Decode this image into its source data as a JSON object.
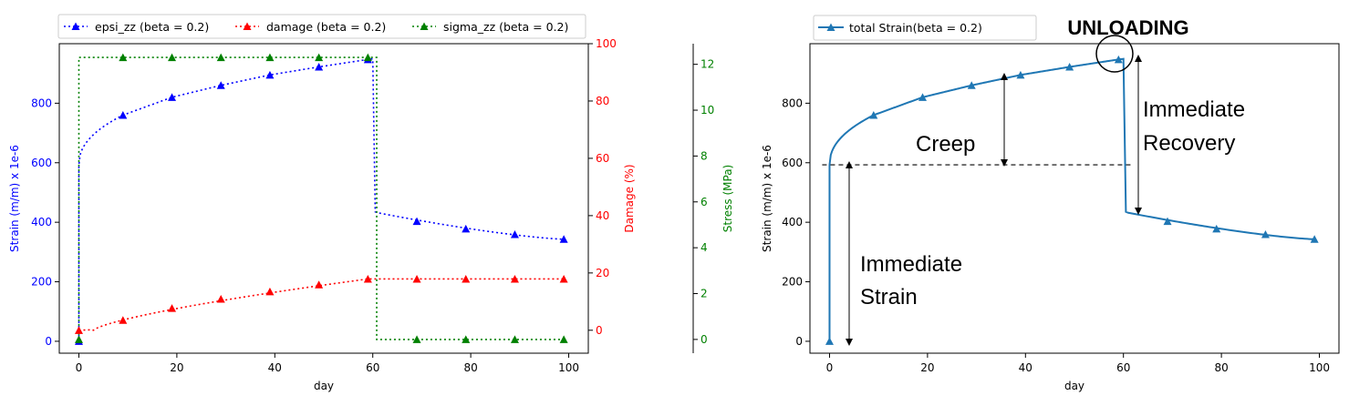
{
  "chart_data": [
    {
      "type": "line",
      "xlabel": "day",
      "x_ticks": [
        0,
        20,
        40,
        60,
        80,
        100
      ],
      "xlim": [
        -4,
        104
      ],
      "axes": {
        "strain": {
          "label": "Strain (m/m) x 1e-6",
          "color": "#0000ff",
          "ylim": [
            -40,
            1000
          ],
          "ticks": [
            0,
            200,
            400,
            600,
            800
          ]
        },
        "damage": {
          "label": "Damage (%)",
          "color": "#ff0000",
          "ylim": [
            -8,
            100
          ],
          "ticks": [
            0,
            20,
            40,
            60,
            80,
            100
          ]
        },
        "stress": {
          "label": "Stress (MPa)",
          "color": "#008000",
          "ylim": [
            -0.6,
            12.9
          ],
          "ticks": [
            0,
            2,
            4,
            6,
            8,
            10,
            12
          ]
        }
      },
      "series": [
        {
          "name": "epsi_zz (beta = 0.2)",
          "axis": "strain",
          "color": "#0000ff",
          "x": [
            0,
            9,
            19,
            29,
            39,
            49,
            59,
            69,
            79,
            89,
            99
          ],
          "values": [
            0,
            760,
            820,
            860,
            895,
            922,
            947,
            403,
            378,
            359,
            343
          ]
        },
        {
          "name": "damage (beta = 0.2)",
          "axis": "damage",
          "color": "#ff0000",
          "x": [
            0,
            9,
            19,
            29,
            39,
            49,
            59,
            69,
            79,
            89,
            99
          ],
          "values": [
            0,
            3.5,
            7.7,
            10.9,
            13.5,
            15.9,
            17.9,
            17.9,
            17.9,
            17.9,
            17.9
          ]
        },
        {
          "name": "sigma_zz (beta = 0.2)",
          "axis": "stress",
          "color": "#008000",
          "x": [
            0,
            9,
            19,
            29,
            39,
            49,
            59,
            69,
            79,
            89,
            99
          ],
          "values": [
            0,
            12.3,
            12.3,
            12.3,
            12.3,
            12.3,
            12.3,
            0,
            0,
            0,
            0
          ]
        }
      ],
      "legend": "top"
    },
    {
      "type": "line",
      "xlabel": "day",
      "ylabel": "Strain (m/m) x 1e-6",
      "x_ticks": [
        0,
        20,
        40,
        60,
        80,
        100
      ],
      "y_ticks": [
        0,
        200,
        400,
        600,
        800
      ],
      "xlim": [
        -4,
        104
      ],
      "ylim": [
        -40,
        1000
      ],
      "series": [
        {
          "name": "total Strain(beta = 0.2)",
          "color": "#1f77b4",
          "x": [
            0,
            9,
            19,
            29,
            39,
            49,
            59,
            69,
            79,
            89,
            99
          ],
          "values": [
            0,
            760,
            820,
            860,
            895,
            922,
            947,
            403,
            378,
            359,
            343
          ]
        }
      ],
      "legend": "top-left",
      "reference_line_y": 593,
      "annotations": {
        "unloading": "UNLOADING",
        "creep": "Creep",
        "recovery_line1": "Immediate",
        "recovery_line2": "Recovery",
        "strain_line1": "Immediate",
        "strain_line2": "Strain"
      }
    }
  ]
}
